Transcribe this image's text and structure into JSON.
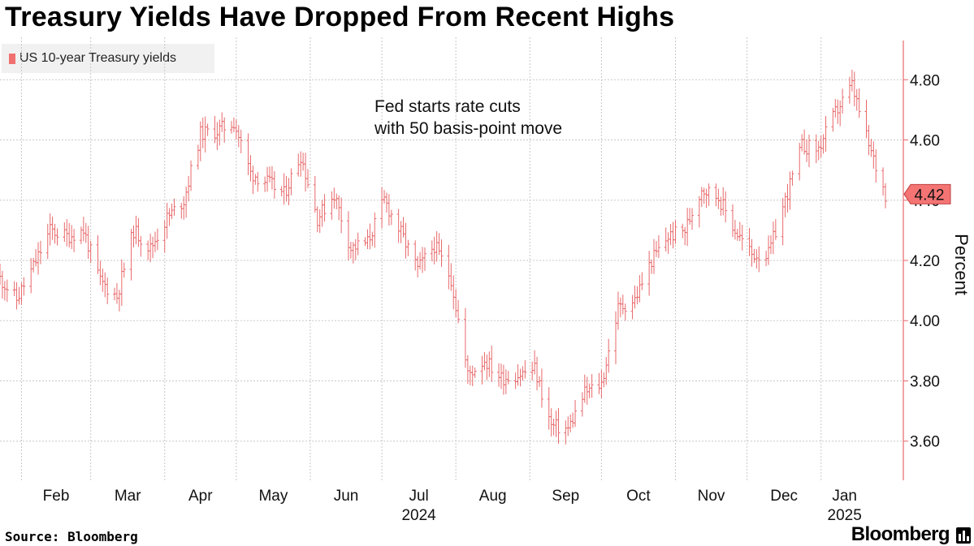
{
  "title": "Treasury Yields Have Dropped From Recent Highs",
  "source": "Source: Bloomberg",
  "brand": "Bloomberg",
  "annotation": [
    "Fed starts rate cuts",
    "with 50 basis-point move"
  ],
  "colors": {
    "series": "#e8686a",
    "badge": "#f47474",
    "axis": "#e8686a",
    "grid": "#c8c8c8"
  },
  "chart_data": {
    "type": "line",
    "title": "Treasury Yields Have Dropped From Recent Highs",
    "ylabel": "Percent",
    "ylim": [
      3.47,
      4.93
    ],
    "yticks": [
      3.6,
      3.8,
      4.0,
      4.2,
      4.4,
      4.6,
      4.8
    ],
    "ytick_labels": [
      "3.60",
      "3.80",
      "4.00",
      "4.20",
      "4.40",
      "4.60",
      "4.80"
    ],
    "xlim": [
      "2024-01-23",
      "2025-01-28"
    ],
    "x_month_labels": [
      {
        "label": "Feb",
        "date": "2024-02-01"
      },
      {
        "label": "Mar",
        "date": "2024-03-01"
      },
      {
        "label": "Apr",
        "date": "2024-04-01"
      },
      {
        "label": "May",
        "date": "2024-05-01"
      },
      {
        "label": "Jun",
        "date": "2024-06-01"
      },
      {
        "label": "Jul",
        "date": "2024-07-01"
      },
      {
        "label": "Aug",
        "date": "2024-08-01"
      },
      {
        "label": "Sep",
        "date": "2024-09-01"
      },
      {
        "label": "Oct",
        "date": "2024-10-01"
      },
      {
        "label": "Nov",
        "date": "2024-11-01"
      },
      {
        "label": "Dec",
        "date": "2024-12-01"
      },
      {
        "label": "Jan",
        "date": "2025-01-01"
      }
    ],
    "year_labels": [
      {
        "label": "2024",
        "date": "2024-07-01"
      },
      {
        "label": "2025",
        "date": "2025-01-01"
      }
    ],
    "last_value_label": "4.42",
    "legend": "top-left",
    "grid": true,
    "series": [
      {
        "name": "US 10-year Treasury yields",
        "points": [
          [
            "2024-01-23",
            4.14
          ],
          [
            "2024-01-30",
            4.07
          ],
          [
            "2024-02-06",
            4.18
          ],
          [
            "2024-02-13",
            4.3
          ],
          [
            "2024-02-20",
            4.28
          ],
          [
            "2024-02-27",
            4.3
          ],
          [
            "2024-03-05",
            4.13
          ],
          [
            "2024-03-12",
            4.08
          ],
          [
            "2024-03-19",
            4.3
          ],
          [
            "2024-03-26",
            4.24
          ],
          [
            "2024-04-02",
            4.34
          ],
          [
            "2024-04-09",
            4.4
          ],
          [
            "2024-04-16",
            4.62
          ],
          [
            "2024-04-23",
            4.63
          ],
          [
            "2024-04-30",
            4.66
          ],
          [
            "2024-05-07",
            4.49
          ],
          [
            "2024-05-14",
            4.46
          ],
          [
            "2024-05-21",
            4.42
          ],
          [
            "2024-05-28",
            4.55
          ],
          [
            "2024-06-04",
            4.34
          ],
          [
            "2024-06-11",
            4.42
          ],
          [
            "2024-06-18",
            4.24
          ],
          [
            "2024-06-25",
            4.26
          ],
          [
            "2024-07-02",
            4.4
          ],
          [
            "2024-07-09",
            4.29
          ],
          [
            "2024-07-16",
            4.17
          ],
          [
            "2024-07-23",
            4.25
          ],
          [
            "2024-07-30",
            4.14
          ],
          [
            "2024-08-06",
            3.82
          ],
          [
            "2024-08-13",
            3.87
          ],
          [
            "2024-08-20",
            3.81
          ],
          [
            "2024-08-27",
            3.82
          ],
          [
            "2024-09-03",
            3.84
          ],
          [
            "2024-09-10",
            3.65
          ],
          [
            "2024-09-17",
            3.64
          ],
          [
            "2024-09-24",
            3.76
          ],
          [
            "2024-10-01",
            3.79
          ],
          [
            "2024-10-08",
            4.04
          ],
          [
            "2024-10-15",
            4.07
          ],
          [
            "2024-10-22",
            4.2
          ],
          [
            "2024-10-29",
            4.28
          ],
          [
            "2024-11-05",
            4.3
          ],
          [
            "2024-11-12",
            4.44
          ],
          [
            "2024-11-19",
            4.41
          ],
          [
            "2024-11-26",
            4.3
          ],
          [
            "2024-12-03",
            4.22
          ],
          [
            "2024-12-10",
            4.22
          ],
          [
            "2024-12-17",
            4.4
          ],
          [
            "2024-12-24",
            4.58
          ],
          [
            "2024-12-31",
            4.57
          ],
          [
            "2025-01-07",
            4.69
          ],
          [
            "2025-01-14",
            4.78
          ],
          [
            "2025-01-21",
            4.58
          ],
          [
            "2025-01-28",
            4.42
          ]
        ]
      }
    ]
  }
}
